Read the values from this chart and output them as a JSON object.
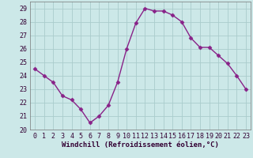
{
  "x": [
    0,
    1,
    2,
    3,
    4,
    5,
    6,
    7,
    8,
    9,
    10,
    11,
    12,
    13,
    14,
    15,
    16,
    17,
    18,
    19,
    20,
    21,
    22,
    23
  ],
  "y": [
    24.5,
    24.0,
    23.5,
    22.5,
    22.2,
    21.5,
    20.5,
    21.0,
    21.8,
    23.5,
    26.0,
    27.9,
    29.0,
    28.8,
    28.8,
    28.5,
    28.0,
    26.8,
    26.1,
    26.1,
    25.5,
    24.9,
    24.0,
    23.0
  ],
  "line_color": "#882288",
  "marker": "D",
  "markersize": 2.5,
  "bg_color": "#CCE8E8",
  "grid_color": "#AACCCC",
  "xlabel": "Windchill (Refroidissement éolien,°C)",
  "xlabel_fontsize": 6.5,
  "xlim": [
    -0.5,
    23.5
  ],
  "ylim": [
    20,
    29.5
  ],
  "yticks": [
    20,
    21,
    22,
    23,
    24,
    25,
    26,
    27,
    28,
    29
  ],
  "xticks": [
    0,
    1,
    2,
    3,
    4,
    5,
    6,
    7,
    8,
    9,
    10,
    11,
    12,
    13,
    14,
    15,
    16,
    17,
    18,
    19,
    20,
    21,
    22,
    23
  ],
  "tick_fontsize": 6.0,
  "linewidth": 1.0,
  "spine_color": "#777777"
}
